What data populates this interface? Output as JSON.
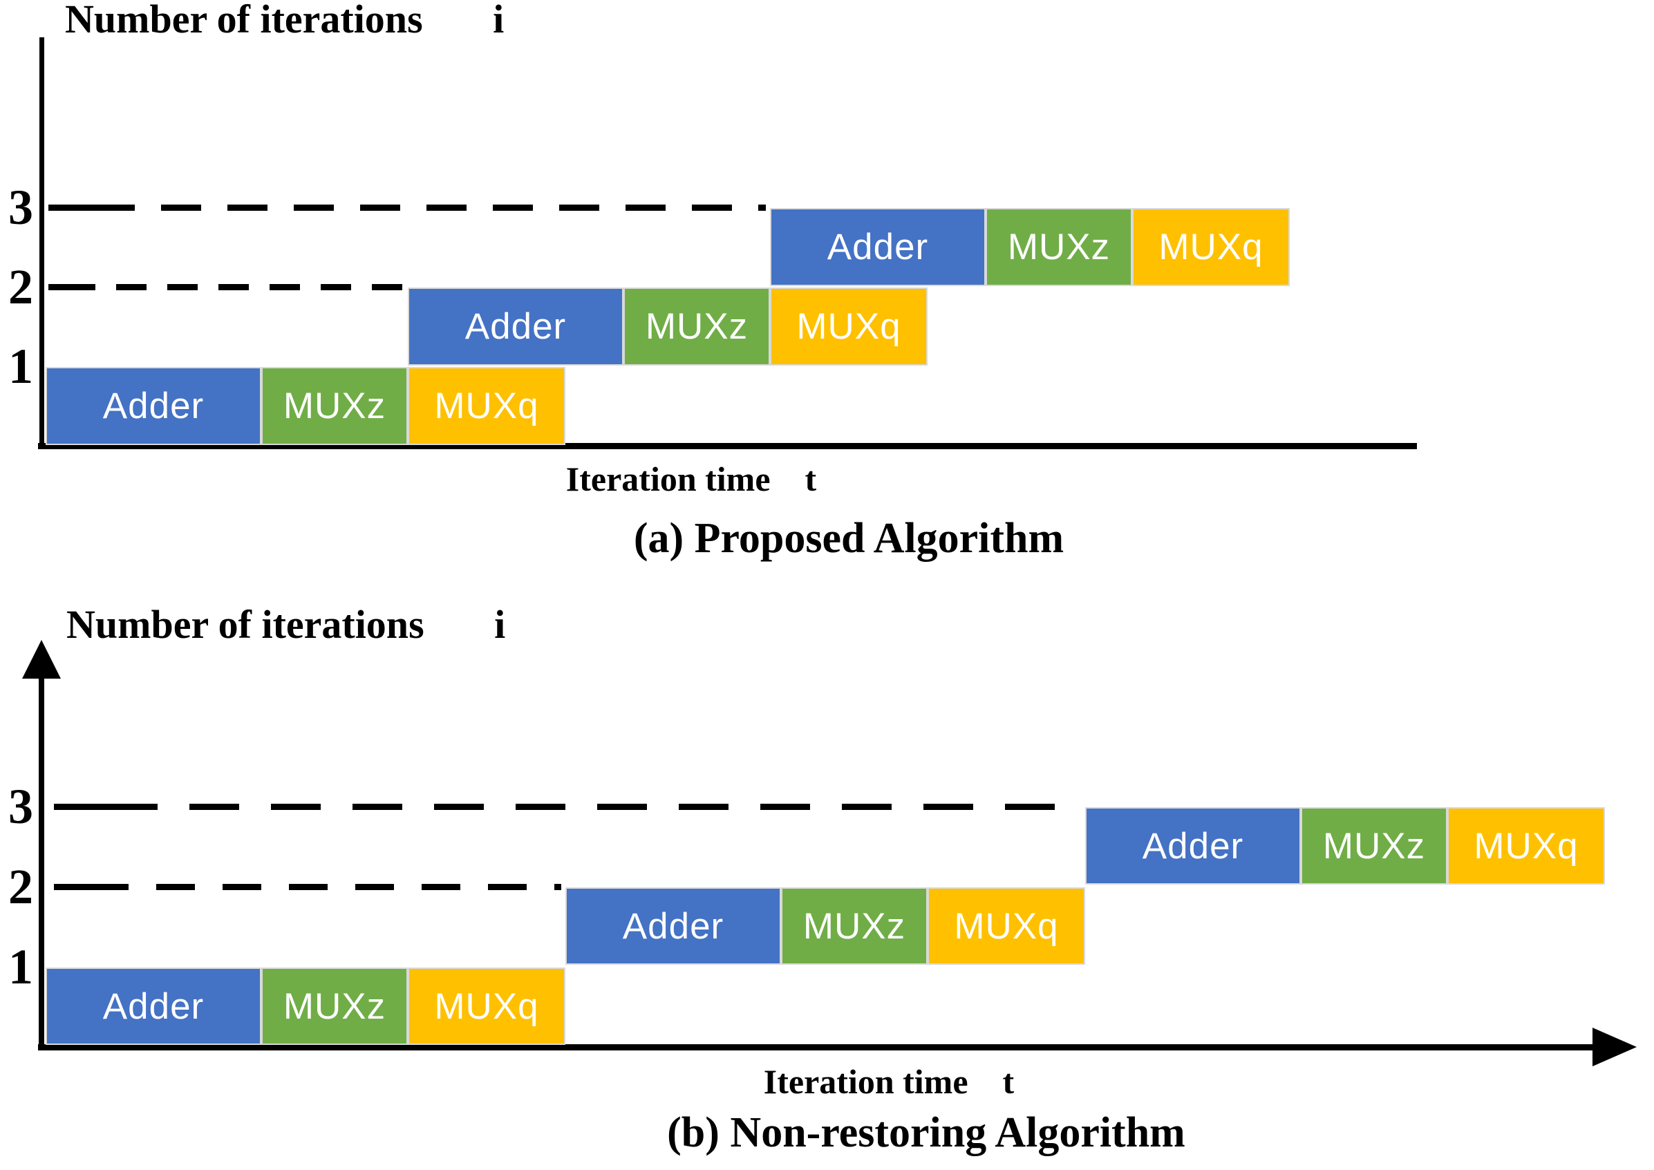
{
  "page": {
    "background": "#ffffff",
    "text_color": "#000000"
  },
  "stages": {
    "adder": {
      "label": "Adder",
      "color": "#4472C4",
      "text_color": "#ffffff"
    },
    "muxz": {
      "label": "MUXz",
      "color": "#70AD47",
      "text_color": "#ffffff"
    },
    "muxq": {
      "label": "MUXq",
      "color": "#FFC000",
      "text_color": "#ffffff"
    }
  },
  "chart_data": [
    {
      "id": "a",
      "type": "gantt",
      "caption": "(a) Proposed Algorithm",
      "y_axis_label": "Number of iterations       i",
      "x_axis_label": "Iteration time    t",
      "x_axis_arrow": false,
      "y_axis_arrow": false,
      "time_unit": "unlabeled axis, values are pixel offsets from origin",
      "rows": [
        {
          "iteration": 1,
          "tick_label": "1",
          "segments": [
            {
              "stage": "adder",
              "t_start": 0,
              "t_end": 312
            },
            {
              "stage": "muxz",
              "t_start": 312,
              "t_end": 524
            },
            {
              "stage": "muxq",
              "t_start": 524,
              "t_end": 752
            }
          ]
        },
        {
          "iteration": 2,
          "tick_label": "2",
          "segments": [
            {
              "stage": "adder",
              "t_start": 524,
              "t_end": 836
            },
            {
              "stage": "muxz",
              "t_start": 836,
              "t_end": 1048
            },
            {
              "stage": "muxq",
              "t_start": 1048,
              "t_end": 1276
            }
          ]
        },
        {
          "iteration": 3,
          "tick_label": "3",
          "segments": [
            {
              "stage": "adder",
              "t_start": 1048,
              "t_end": 1360
            },
            {
              "stage": "muxz",
              "t_start": 1360,
              "t_end": 1572
            },
            {
              "stage": "muxq",
              "t_start": 1572,
              "t_end": 1800
            }
          ]
        }
      ],
      "gridlines": [
        {
          "level": 3,
          "t_end": 1048
        },
        {
          "level": 2,
          "t_end": 524
        }
      ]
    },
    {
      "id": "b",
      "type": "gantt",
      "caption": "(b) Non-restoring Algorithm",
      "y_axis_label": "Number of iterations       i",
      "x_axis_label": "Iteration time    t",
      "x_axis_arrow": true,
      "y_axis_arrow": true,
      "time_unit": "unlabeled axis, values are pixel offsets from origin",
      "rows": [
        {
          "iteration": 1,
          "tick_label": "1",
          "segments": [
            {
              "stage": "adder",
              "t_start": 0,
              "t_end": 312
            },
            {
              "stage": "muxz",
              "t_start": 312,
              "t_end": 524
            },
            {
              "stage": "muxq",
              "t_start": 524,
              "t_end": 752
            }
          ]
        },
        {
          "iteration": 2,
          "tick_label": "2",
          "segments": [
            {
              "stage": "adder",
              "t_start": 752,
              "t_end": 1064
            },
            {
              "stage": "muxz",
              "t_start": 1064,
              "t_end": 1276
            },
            {
              "stage": "muxq",
              "t_start": 1276,
              "t_end": 1504
            }
          ]
        },
        {
          "iteration": 3,
          "tick_label": "3",
          "segments": [
            {
              "stage": "adder",
              "t_start": 1504,
              "t_end": 1816
            },
            {
              "stage": "muxz",
              "t_start": 1816,
              "t_end": 2028
            },
            {
              "stage": "muxq",
              "t_start": 2028,
              "t_end": 2256
            }
          ]
        }
      ],
      "gridlines": [
        {
          "level": 3,
          "t_end": 1504
        },
        {
          "level": 2,
          "t_end": 752
        }
      ]
    }
  ]
}
